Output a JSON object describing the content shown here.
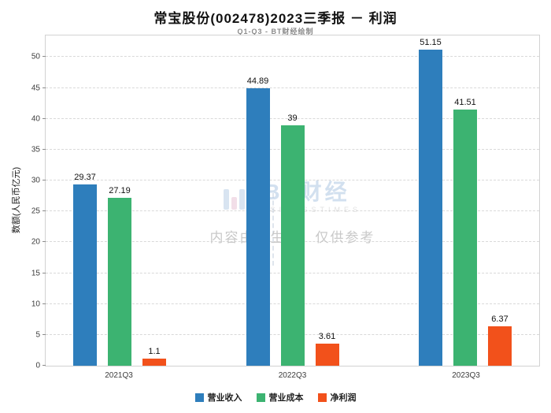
{
  "header": {
    "title": "常宝股份(002478)2023三季报 － 利润",
    "subtitle": "Q1-Q3 - BT财经绘制"
  },
  "chart_data": {
    "type": "bar",
    "title": "常宝股份(002478)2023三季报 － 利润",
    "subtitle": "Q1-Q3 - BT财经绘制",
    "xlabel": "",
    "ylabel": "数额(人民币亿元)",
    "categories": [
      "2021Q3",
      "2022Q3",
      "2023Q3"
    ],
    "series": [
      {
        "name": "营业收入",
        "color": "#2e7ebc",
        "values": [
          29.37,
          44.89,
          51.15
        ]
      },
      {
        "name": "营业成本",
        "color": "#3cb371",
        "values": [
          27.19,
          39,
          41.51
        ]
      },
      {
        "name": "净利润",
        "color": "#f2511b",
        "values": [
          1.1,
          3.61,
          6.37
        ]
      }
    ],
    "ylim": [
      0,
      53.5
    ],
    "yticks": [
      0,
      5,
      10,
      15,
      20,
      25,
      30,
      35,
      40,
      45,
      50
    ],
    "grid": true,
    "grid_style": "dashed",
    "legend_position": "bottom"
  },
  "watermark": {
    "logo_text": "BT财经",
    "logo_subtext": "BUSINESSTIMES",
    "disclaimer": "内容由AI生成，仅供参考"
  }
}
